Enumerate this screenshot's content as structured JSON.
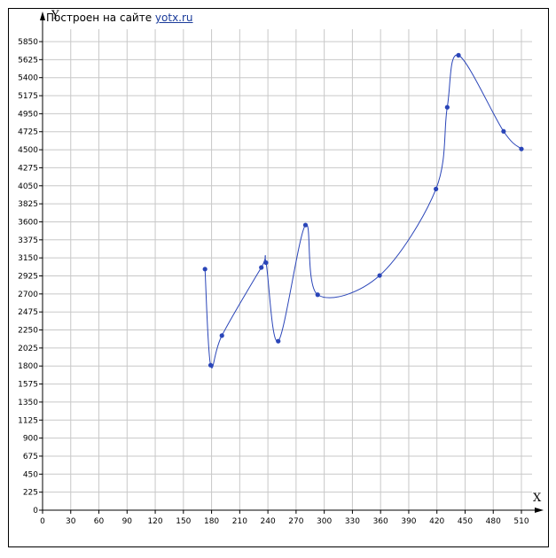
{
  "credit": {
    "text": "Построен на сайте",
    "link": "yotx.ru"
  },
  "chart_data": {
    "type": "line",
    "title": "",
    "xlabel": "X",
    "ylabel": "Y",
    "xlim": [
      0,
      510
    ],
    "ylim": [
      0,
      5850
    ],
    "x_ticks": [
      0,
      30,
      60,
      90,
      120,
      150,
      180,
      210,
      240,
      270,
      300,
      330,
      360,
      390,
      420,
      450,
      480,
      510
    ],
    "y_ticks": [
      0,
      225,
      450,
      675,
      900,
      1125,
      1350,
      1575,
      1800,
      2025,
      2250,
      2475,
      2700,
      2925,
      3150,
      3375,
      3600,
      3825,
      4050,
      4275,
      4500,
      4725,
      4950,
      5175,
      5400,
      5625,
      5850
    ],
    "grid": true,
    "line_color": "#2a45b8",
    "point_color": "#2a45b8",
    "series": [
      {
        "x": [
          173,
          179,
          191,
          233,
          238,
          251,
          280,
          293,
          359,
          419,
          431,
          443,
          491,
          510
        ],
        "y": [
          3010,
          1810,
          2180,
          3030,
          3090,
          2110,
          3560,
          2690,
          2930,
          4010,
          5030,
          5680,
          4730,
          4510
        ]
      }
    ]
  }
}
